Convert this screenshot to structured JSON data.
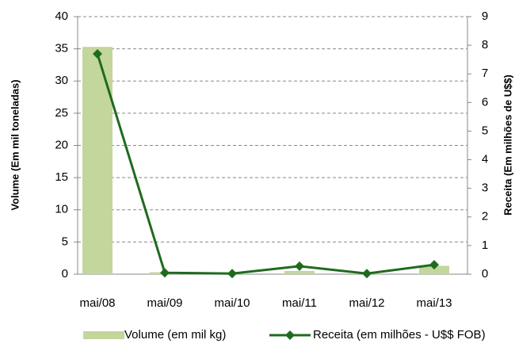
{
  "chart_data": {
    "type": "bar-line",
    "categories": [
      "mai/08",
      "mai/09",
      "mai/10",
      "mai/11",
      "mai/12",
      "mai/13"
    ],
    "series": [
      {
        "name": "Volume (em mil kg)",
        "type": "bar",
        "color": "#c3d69b",
        "values": [
          35.3,
          0.3,
          0.1,
          0.5,
          0.1,
          1.3
        ]
      },
      {
        "name": "Receita (em milhões - U$$ FOB)",
        "type": "line",
        "color": "#1e6b1e",
        "axis": "y2",
        "values": [
          7.7,
          0.05,
          0.02,
          0.28,
          0.02,
          0.33
        ]
      }
    ],
    "ylabel": "Volume (Em mil toneladas)",
    "y2label": "Receita (Em milhões de U$$)",
    "ylim": [
      0,
      40
    ],
    "yticks": [
      0,
      5,
      10,
      15,
      20,
      25,
      30,
      35,
      40
    ],
    "y2lim": [
      0,
      9
    ],
    "y2ticks": [
      0,
      1,
      2,
      3,
      4,
      5,
      6,
      7,
      8,
      9
    ],
    "grid": true,
    "legend": "bottom"
  }
}
